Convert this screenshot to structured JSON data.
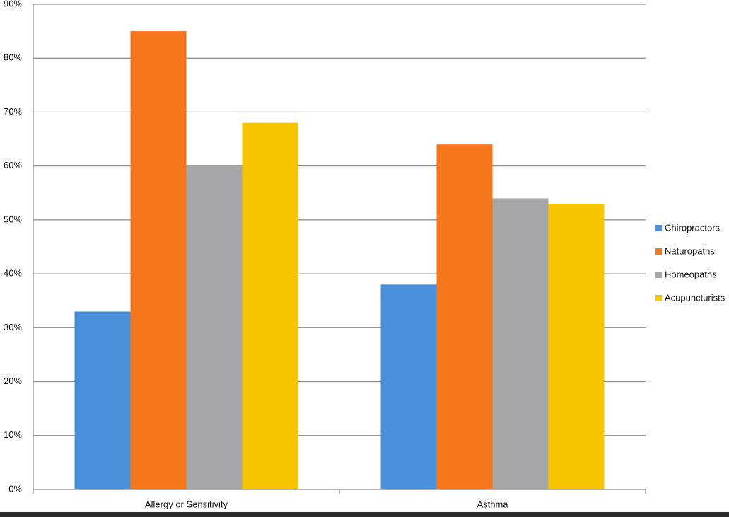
{
  "chart_data": {
    "type": "bar",
    "categories": [
      "Allergy or Sensitivity",
      "Asthma"
    ],
    "series": [
      {
        "name": "Chiropractors",
        "color": "#4a90da",
        "values": [
          33,
          38
        ]
      },
      {
        "name": "Naturopaths",
        "color": "#f6761c",
        "values": [
          85,
          64
        ]
      },
      {
        "name": "Homeopaths",
        "color": "#a7a7a9",
        "values": [
          60,
          54
        ]
      },
      {
        "name": "Acupuncturists",
        "color": "#f7c600",
        "values": [
          68,
          53
        ]
      }
    ],
    "ylim": [
      0,
      90
    ],
    "yticks": [
      {
        "value": 0,
        "label": "0%"
      },
      {
        "value": 10,
        "label": "10%"
      },
      {
        "value": 20,
        "label": "20%"
      },
      {
        "value": 30,
        "label": "30%"
      },
      {
        "value": 40,
        "label": "40%"
      },
      {
        "value": 50,
        "label": "50%"
      },
      {
        "value": 60,
        "label": "60%"
      },
      {
        "value": 70,
        "label": "70%"
      },
      {
        "value": 80,
        "label": "80%"
      },
      {
        "value": 90,
        "label": "90%"
      }
    ],
    "grid": true,
    "legend": "right"
  }
}
